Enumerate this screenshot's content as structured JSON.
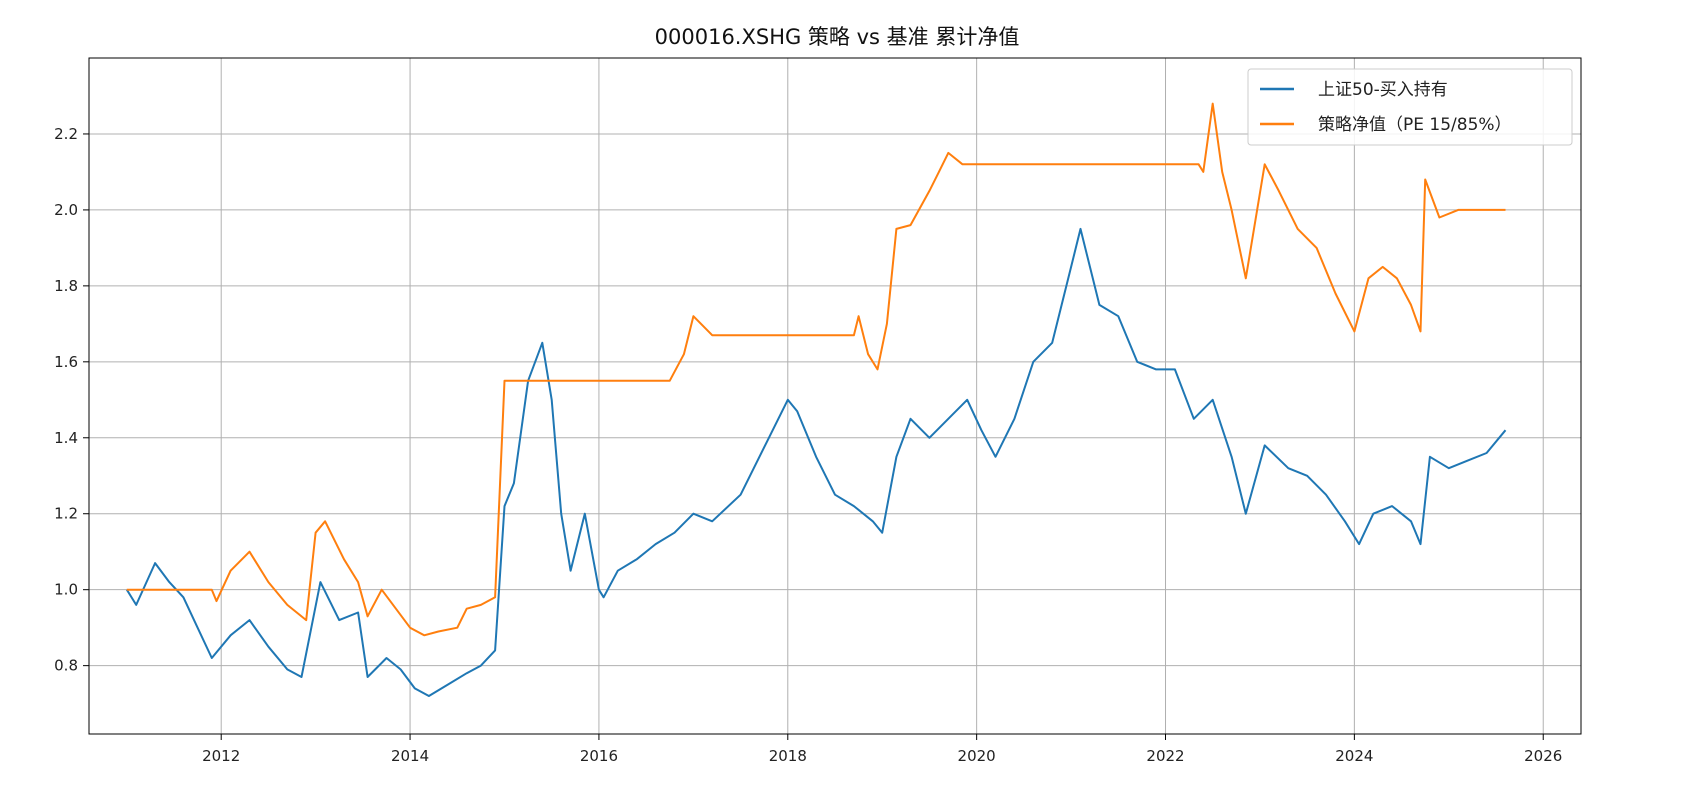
{
  "chart_data": {
    "type": "line",
    "title": "000016.XSHG 策略 vs 基准 累计净值",
    "xlabel": "",
    "ylabel": "",
    "xlim": [
      2010.6,
      2026.4
    ],
    "ylim": [
      0.62,
      2.4
    ],
    "x_ticks": [
      2012,
      2014,
      2016,
      2018,
      2020,
      2022,
      2024,
      2026
    ],
    "x_tick_labels": [
      "2012",
      "2014",
      "2016",
      "2018",
      "2020",
      "2022",
      "2024",
      "2026"
    ],
    "y_ticks": [
      0.8,
      1.0,
      1.2,
      1.4,
      1.6,
      1.8,
      2.0,
      2.2
    ],
    "y_tick_labels": [
      "0.8",
      "1.0",
      "1.2",
      "1.4",
      "1.6",
      "1.8",
      "2.0",
      "2.2"
    ],
    "grid": true,
    "legend_position": "top-right",
    "series": [
      {
        "name": "上证50-买入持有",
        "color": "#1f77b4",
        "x": [
          2011.0,
          2011.1,
          2011.3,
          2011.45,
          2011.6,
          2011.75,
          2011.9,
          2012.1,
          2012.3,
          2012.5,
          2012.7,
          2012.85,
          2013.05,
          2013.25,
          2013.45,
          2013.55,
          2013.75,
          2013.9,
          2014.05,
          2014.2,
          2014.4,
          2014.6,
          2014.75,
          2014.9,
          2015.0,
          2015.1,
          2015.25,
          2015.4,
          2015.5,
          2015.6,
          2015.7,
          2015.85,
          2016.0,
          2016.05,
          2016.2,
          2016.4,
          2016.6,
          2016.8,
          2017.0,
          2017.2,
          2017.5,
          2017.8,
          2018.0,
          2018.1,
          2018.3,
          2018.5,
          2018.7,
          2018.9,
          2019.0,
          2019.15,
          2019.3,
          2019.5,
          2019.7,
          2019.9,
          2020.05,
          2020.2,
          2020.4,
          2020.6,
          2020.8,
          2021.0,
          2021.1,
          2021.3,
          2021.5,
          2021.7,
          2021.9,
          2022.1,
          2022.3,
          2022.5,
          2022.7,
          2022.85,
          2023.05,
          2023.3,
          2023.5,
          2023.7,
          2023.9,
          2024.05,
          2024.2,
          2024.4,
          2024.6,
          2024.7,
          2024.8,
          2025.0,
          2025.2,
          2025.4,
          2025.6
        ],
        "values": [
          1.0,
          0.96,
          1.07,
          1.02,
          0.98,
          0.9,
          0.82,
          0.88,
          0.92,
          0.85,
          0.79,
          0.77,
          1.02,
          0.92,
          0.94,
          0.77,
          0.82,
          0.79,
          0.74,
          0.72,
          0.75,
          0.78,
          0.8,
          0.84,
          1.22,
          1.28,
          1.55,
          1.65,
          1.5,
          1.2,
          1.05,
          1.2,
          1.0,
          0.98,
          1.05,
          1.08,
          1.12,
          1.15,
          1.2,
          1.18,
          1.25,
          1.4,
          1.5,
          1.47,
          1.35,
          1.25,
          1.22,
          1.18,
          1.15,
          1.35,
          1.45,
          1.4,
          1.45,
          1.5,
          1.42,
          1.35,
          1.45,
          1.6,
          1.65,
          1.85,
          1.95,
          1.75,
          1.72,
          1.6,
          1.58,
          1.58,
          1.45,
          1.5,
          1.35,
          1.2,
          1.38,
          1.32,
          1.3,
          1.25,
          1.18,
          1.12,
          1.2,
          1.22,
          1.18,
          1.12,
          1.35,
          1.32,
          1.34,
          1.36,
          1.42
        ]
      },
      {
        "name": "策略净值（PE 15/85%）",
        "color": "#ff7f0e",
        "x": [
          2011.0,
          2011.9,
          2011.95,
          2012.1,
          2012.3,
          2012.5,
          2012.7,
          2012.9,
          2013.0,
          2013.1,
          2013.3,
          2013.45,
          2013.55,
          2013.7,
          2013.85,
          2014.0,
          2014.15,
          2014.3,
          2014.5,
          2014.6,
          2014.75,
          2014.9,
          2014.97,
          2015.0,
          2016.75,
          2016.9,
          2017.0,
          2017.2,
          2018.7,
          2018.75,
          2018.85,
          2018.95,
          2019.05,
          2019.15,
          2019.3,
          2019.5,
          2019.6,
          2019.7,
          2019.85,
          2022.35,
          2022.4,
          2022.5,
          2022.6,
          2022.7,
          2022.85,
          2023.05,
          2023.2,
          2023.4,
          2023.6,
          2023.8,
          2024.0,
          2024.15,
          2024.3,
          2024.45,
          2024.6,
          2024.7,
          2024.75,
          2024.9,
          2025.1,
          2025.3,
          2025.6
        ],
        "values": [
          1.0,
          1.0,
          0.97,
          1.05,
          1.1,
          1.02,
          0.96,
          0.92,
          1.15,
          1.18,
          1.08,
          1.02,
          0.93,
          1.0,
          0.95,
          0.9,
          0.88,
          0.89,
          0.9,
          0.95,
          0.96,
          0.98,
          1.38,
          1.55,
          1.55,
          1.62,
          1.72,
          1.67,
          1.67,
          1.72,
          1.62,
          1.58,
          1.7,
          1.95,
          1.96,
          2.05,
          2.1,
          2.15,
          2.12,
          2.12,
          2.1,
          2.28,
          2.1,
          2.0,
          1.82,
          2.12,
          2.05,
          1.95,
          1.9,
          1.78,
          1.68,
          1.82,
          1.85,
          1.82,
          1.75,
          1.68,
          2.08,
          1.98,
          2.0,
          2.0,
          2.0
        ]
      }
    ]
  }
}
